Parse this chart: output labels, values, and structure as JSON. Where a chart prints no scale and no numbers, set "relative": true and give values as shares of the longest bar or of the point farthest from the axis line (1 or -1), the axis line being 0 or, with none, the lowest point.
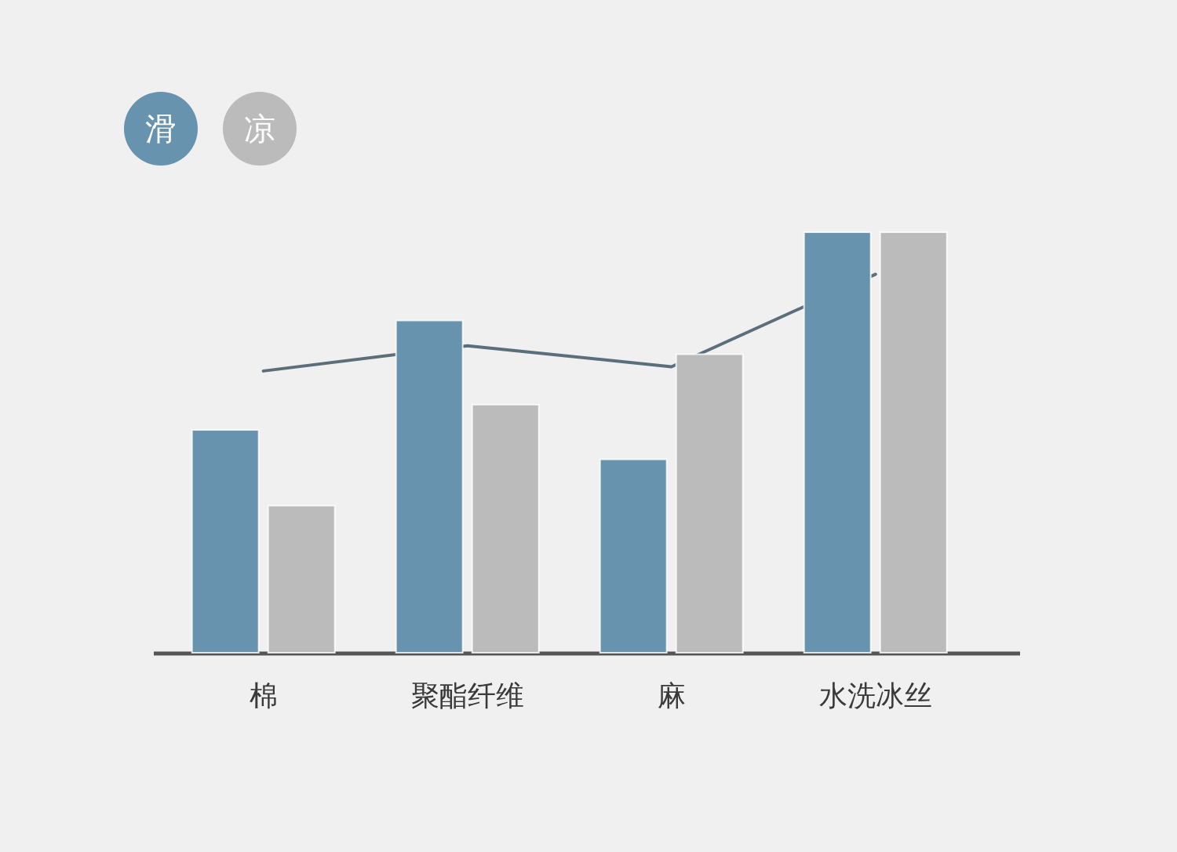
{
  "chart_data": {
    "type": "bar",
    "relative": true,
    "legend": "top left",
    "categories": [
      "棉",
      "聚酯纤维",
      "麻",
      "水洗冰丝"
    ],
    "series": [
      {
        "name": "滑",
        "color": "#6893ae",
        "values": [
          0.53,
          0.79,
          0.46,
          1
        ]
      },
      {
        "name": "凉",
        "color": "#bbbbbb",
        "values": [
          0.35,
          0.59,
          0.71,
          1
        ]
      },
      {
        "type": "line",
        "color": "#5b6f7a",
        "values": [
          0.67,
          0.73,
          0.68,
          0.9
        ]
      }
    ]
  }
}
